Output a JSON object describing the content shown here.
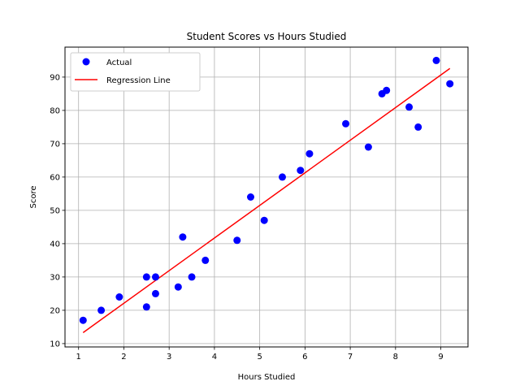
{
  "chart_data": {
    "type": "scatter",
    "title": "Student Scores vs Hours Studied",
    "xlabel": "Hours Studied",
    "ylabel": "Score",
    "xlim": [
      0.7,
      9.6
    ],
    "ylim": [
      9,
      99
    ],
    "xticks": [
      1,
      2,
      3,
      4,
      5,
      6,
      7,
      8,
      9
    ],
    "yticks": [
      10,
      20,
      30,
      40,
      50,
      60,
      70,
      80,
      90
    ],
    "grid": true,
    "legend_position": "top-left",
    "series": [
      {
        "name": "Actual",
        "kind": "scatter",
        "color": "#0000ff",
        "points": [
          [
            1.1,
            17
          ],
          [
            1.5,
            20
          ],
          [
            1.9,
            24
          ],
          [
            2.5,
            21
          ],
          [
            2.5,
            30
          ],
          [
            2.7,
            25
          ],
          [
            2.7,
            30
          ],
          [
            3.2,
            27
          ],
          [
            3.3,
            42
          ],
          [
            3.5,
            30
          ],
          [
            3.8,
            35
          ],
          [
            4.5,
            41
          ],
          [
            4.8,
            54
          ],
          [
            5.1,
            47
          ],
          [
            5.5,
            60
          ],
          [
            5.9,
            62
          ],
          [
            6.1,
            67
          ],
          [
            6.9,
            76
          ],
          [
            7.4,
            69
          ],
          [
            7.7,
            85
          ],
          [
            7.8,
            86
          ],
          [
            8.3,
            81
          ],
          [
            8.5,
            75
          ],
          [
            8.9,
            95
          ],
          [
            9.2,
            88
          ]
        ]
      },
      {
        "name": "Regression Line",
        "kind": "line",
        "color": "#ff0000",
        "points": [
          [
            1.1,
            13.3
          ],
          [
            9.2,
            92.6
          ]
        ]
      }
    ]
  }
}
